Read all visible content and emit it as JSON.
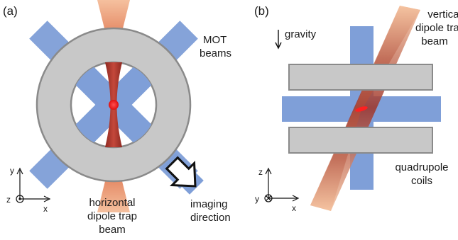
{
  "panel_a": {
    "tag": "(a)",
    "mot_label": [
      "MOT",
      "beams"
    ],
    "trap_label": [
      "horizontal",
      "dipole trap",
      "beam"
    ],
    "imaging_label": [
      "imaging",
      "direction"
    ],
    "axes": {
      "y": "y",
      "z": "z",
      "x": "x"
    }
  },
  "panel_b": {
    "tag": "(b)",
    "gravity_label": "gravity",
    "trap_label": [
      "vertical",
      "dipole trap",
      "beam"
    ],
    "coils_label": [
      "quadrupole",
      "coils"
    ],
    "axes": {
      "z": "z",
      "y": "y",
      "x": "x"
    }
  },
  "colors": {
    "mot_beam": "#7f9fd8",
    "ring": "#c8c8c8",
    "ring_stroke": "#8a8a8a",
    "trap_beam_outer": "#f2b08a",
    "trap_beam_inner": "#a83a2e",
    "atoms": "#ff2020",
    "coil": "#c8c8c8"
  }
}
